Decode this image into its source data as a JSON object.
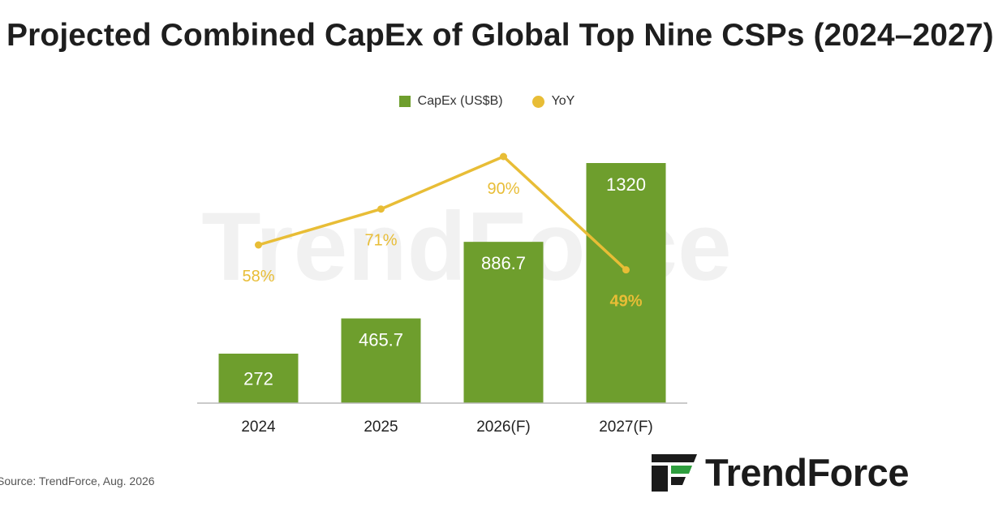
{
  "title": "Projected Combined CapEx of Global Top Nine CSPs (2024–2027)",
  "source": "Source: TrendForce, Aug. 2026",
  "brand": {
    "name": "TrendForce",
    "logo_icon": "trendforce-logo-icon"
  },
  "watermark": "TrendForce",
  "colors": {
    "bar": "#6e9e2d",
    "line": "#e8bd36",
    "axis": "#b8b8b8",
    "bar_label": "#ffffff"
  },
  "chart_data": {
    "type": "bar",
    "title": "Projected Combined CapEx of Global Top Nine CSPs (2024–2027)",
    "categories": [
      "2024",
      "2025",
      "2026(F)",
      "2027(F)"
    ],
    "series": [
      {
        "name": "CapEx (US$B)",
        "type": "bar",
        "values": [
          272,
          465.7,
          886.7,
          1320
        ],
        "labels": [
          "272",
          "465.7",
          "886.7",
          "1320"
        ]
      },
      {
        "name": "YoY",
        "type": "line",
        "values": [
          58,
          71,
          90,
          49
        ],
        "labels": [
          "58%",
          "71%",
          "90%",
          "49%"
        ]
      }
    ],
    "legend_position": "top-center",
    "grid": false
  }
}
